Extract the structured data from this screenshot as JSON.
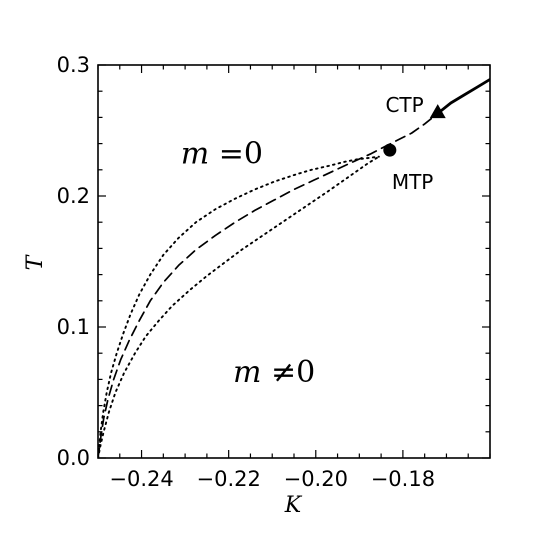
{
  "chart_data": {
    "type": "line",
    "title": "",
    "xlabel": "K",
    "ylabel": "T",
    "xlim": [
      -0.25,
      -0.16
    ],
    "ylim": [
      0.0,
      0.3
    ],
    "x_ticks": [
      -0.24,
      -0.22,
      -0.2,
      -0.18
    ],
    "x_tick_labels": [
      "−0.24",
      "−0.22",
      "−0.20",
      "−0.18"
    ],
    "y_ticks": [
      0.0,
      0.1,
      0.2,
      0.3
    ],
    "y_tick_labels": [
      "0.0",
      "0.1",
      "0.2",
      "0.3"
    ],
    "x_minor_step": 0.005,
    "y_minor_step": 0.02,
    "grid": false,
    "series": [
      {
        "style": "dotted",
        "color": "#000000",
        "x": [
          -0.25,
          -0.2494,
          -0.2487,
          -0.2475,
          -0.246,
          -0.244,
          -0.2415,
          -0.239,
          -0.236,
          -0.233,
          -0.229,
          -0.225,
          -0.221,
          -0.217,
          -0.213,
          -0.209,
          -0.205,
          -0.201,
          -0.197,
          -0.194,
          -0.191,
          -0.188,
          -0.1855
        ],
        "values": [
          0.0,
          0.01,
          0.02,
          0.035,
          0.05,
          0.065,
          0.08,
          0.093,
          0.105,
          0.116,
          0.128,
          0.139,
          0.149,
          0.159,
          0.168,
          0.177,
          0.186,
          0.195,
          0.204,
          0.211,
          0.218,
          0.225,
          0.23
        ]
      },
      {
        "style": "dotted",
        "color": "#000000",
        "x": [
          -0.25,
          -0.2494,
          -0.2488,
          -0.248,
          -0.247,
          -0.2457,
          -0.2442,
          -0.2425,
          -0.2405,
          -0.238,
          -0.235,
          -0.2315,
          -0.2275,
          -0.223,
          -0.2185,
          -0.214,
          -0.2095,
          -0.205,
          -0.201,
          -0.197,
          -0.1935,
          -0.1905,
          -0.188,
          -0.1855
        ],
        "values": [
          0.0,
          0.02,
          0.035,
          0.05,
          0.065,
          0.08,
          0.095,
          0.11,
          0.125,
          0.14,
          0.155,
          0.168,
          0.18,
          0.19,
          0.198,
          0.205,
          0.211,
          0.216,
          0.22,
          0.223,
          0.226,
          0.228,
          0.229,
          0.23
        ]
      },
      {
        "style": "dashed",
        "color": "#000000",
        "x": [
          -0.25,
          -0.2494,
          -0.2487,
          -0.2477,
          -0.2464,
          -0.2448,
          -0.2428,
          -0.2405,
          -0.238,
          -0.235,
          -0.2315,
          -0.2275,
          -0.223,
          -0.2185,
          -0.214,
          -0.2095,
          -0.205,
          -0.2005,
          -0.196,
          -0.1915,
          -0.1875,
          -0.184,
          -0.181,
          -0.178,
          -0.175,
          -0.172
        ],
        "values": [
          0.0,
          0.015,
          0.03,
          0.045,
          0.06,
          0.075,
          0.09,
          0.105,
          0.12,
          0.134,
          0.147,
          0.159,
          0.17,
          0.18,
          0.189,
          0.197,
          0.205,
          0.212,
          0.219,
          0.226,
          0.232,
          0.238,
          0.243,
          0.248,
          0.255,
          0.263
        ]
      },
      {
        "style": "solid",
        "color": "#000000",
        "x": [
          -0.172,
          -0.169,
          -0.166,
          -0.163,
          -0.16
        ],
        "values": [
          0.263,
          0.271,
          0.277,
          0.283,
          0.289
        ]
      }
    ],
    "points": [
      {
        "label": "MTP",
        "marker": "circle",
        "x": -0.183,
        "y": 0.235
      },
      {
        "label": "CTP",
        "marker": "triangle",
        "x": -0.172,
        "y": 0.264
      }
    ],
    "annotations": [
      {
        "text": "m =0",
        "italic_part": "m",
        "rest": " =0",
        "x": -0.231,
        "y": 0.225
      },
      {
        "text": "m ≠0",
        "italic_part": "m",
        "rest": " ≠0",
        "x": -0.219,
        "y": 0.058
      }
    ]
  }
}
